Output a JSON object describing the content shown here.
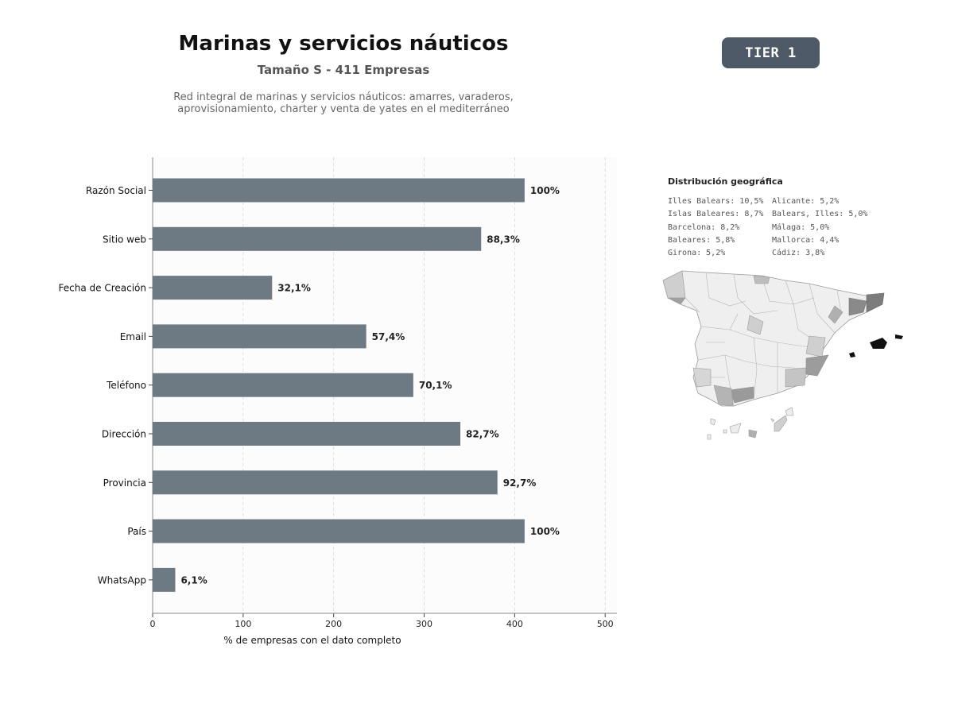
{
  "header": {
    "title": "Marinas y servicios náuticos",
    "subtitle": "Tamaño S - 411 Empresas",
    "description_line1": "Red integral de marinas y servicios náuticos: amarres, varaderos,",
    "description_line2": "aprovisionamiento, charter y venta de yates en el mediterráneo",
    "tier_badge": "TIER 1"
  },
  "colors": {
    "bar": "#6e7a83",
    "badge": "#4d5966",
    "plot_bg": "#fcfcfc"
  },
  "chart_data": {
    "type": "bar",
    "orientation": "horizontal",
    "categories": [
      "Razón Social",
      "Sitio web",
      "Fecha de Creación",
      "Email",
      "Teléfono",
      "Dirección",
      "Provincia",
      "País",
      "WhatsApp"
    ],
    "values": [
      411,
      363,
      132,
      236,
      288,
      340,
      381,
      411,
      25
    ],
    "data_labels": [
      "100%",
      "88,3%",
      "32,1%",
      "57,4%",
      "70,1%",
      "82,7%",
      "92,7%",
      "100%",
      "6,1%"
    ],
    "xlabel": "% de empresas con el dato completo",
    "xlim": [
      0,
      513
    ],
    "xticks": [
      "0",
      "100",
      "200",
      "300",
      "400",
      "500"
    ],
    "grid": "x-dashed",
    "legend": "none"
  },
  "geo": {
    "title": "Distribución geográfica",
    "left_column": [
      "Illes Balears: 10,5%",
      "Islas Baleares: 8,7%",
      "Barcelona: 8,2%",
      "Baleares: 5,8%",
      "Girona: 5,2%"
    ],
    "right_column": [
      "Alicante: 5,2%",
      "Balears, Illes: 5,0%",
      "Málaga: 5,0%",
      "Mallorca: 4,4%",
      "Cádiz: 3,8%"
    ]
  }
}
